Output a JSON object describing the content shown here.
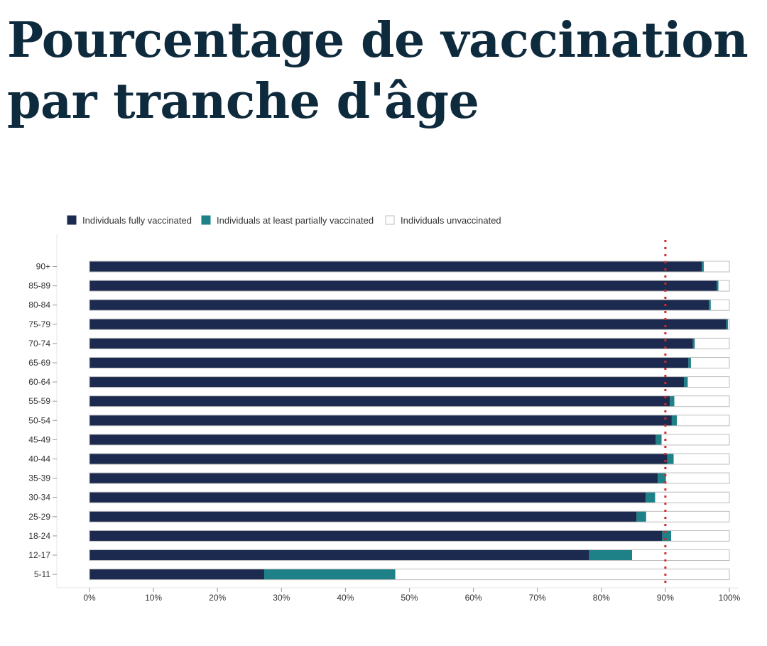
{
  "title": "Pourcentage de vaccination par tranche d'âge",
  "colors": {
    "fully": "#1b2a4e",
    "partial": "#1e8187",
    "unvaccinated": "#ffffff",
    "unvaccinated_border": "#bdbdbd",
    "reference_line": "#d62728",
    "title": "#0e2a3d"
  },
  "chart_data": {
    "type": "bar",
    "orientation": "horizontal",
    "stacked": true,
    "legend_position": "top-left",
    "grid": false,
    "categories": [
      "90+",
      "85-89",
      "80-84",
      "75-79",
      "70-74",
      "65-69",
      "60-64",
      "55-59",
      "50-54",
      "45-49",
      "40-44",
      "35-39",
      "30-34",
      "25-29",
      "18-24",
      "12-17",
      "5-11"
    ],
    "series": [
      {
        "name": "Individuals fully vaccinated",
        "values": [
          95.7,
          98.0,
          96.8,
          99.5,
          94.3,
          93.6,
          92.9,
          90.7,
          91.0,
          88.5,
          90.3,
          88.8,
          86.9,
          85.5,
          89.5,
          78.1,
          27.3
        ]
      },
      {
        "name": "Individuals at least partially vaccinated",
        "values": [
          0.3,
          0.3,
          0.3,
          0.3,
          0.3,
          0.4,
          0.6,
          0.7,
          0.8,
          0.9,
          1.0,
          1.3,
          1.5,
          1.5,
          1.4,
          6.7,
          20.5
        ]
      },
      {
        "name": "Individuals unvaccinated",
        "values": [
          4.0,
          1.7,
          2.9,
          0.2,
          5.4,
          6.0,
          6.5,
          8.6,
          8.2,
          10.6,
          8.7,
          9.9,
          11.6,
          13.0,
          9.1,
          15.2,
          52.2
        ]
      }
    ],
    "xlim": [
      0,
      100
    ],
    "x_ticks": [
      "0%",
      "10%",
      "20%",
      "30%",
      "40%",
      "50%",
      "60%",
      "70%",
      "80%",
      "90%",
      "100%"
    ],
    "reference_line": 90
  }
}
